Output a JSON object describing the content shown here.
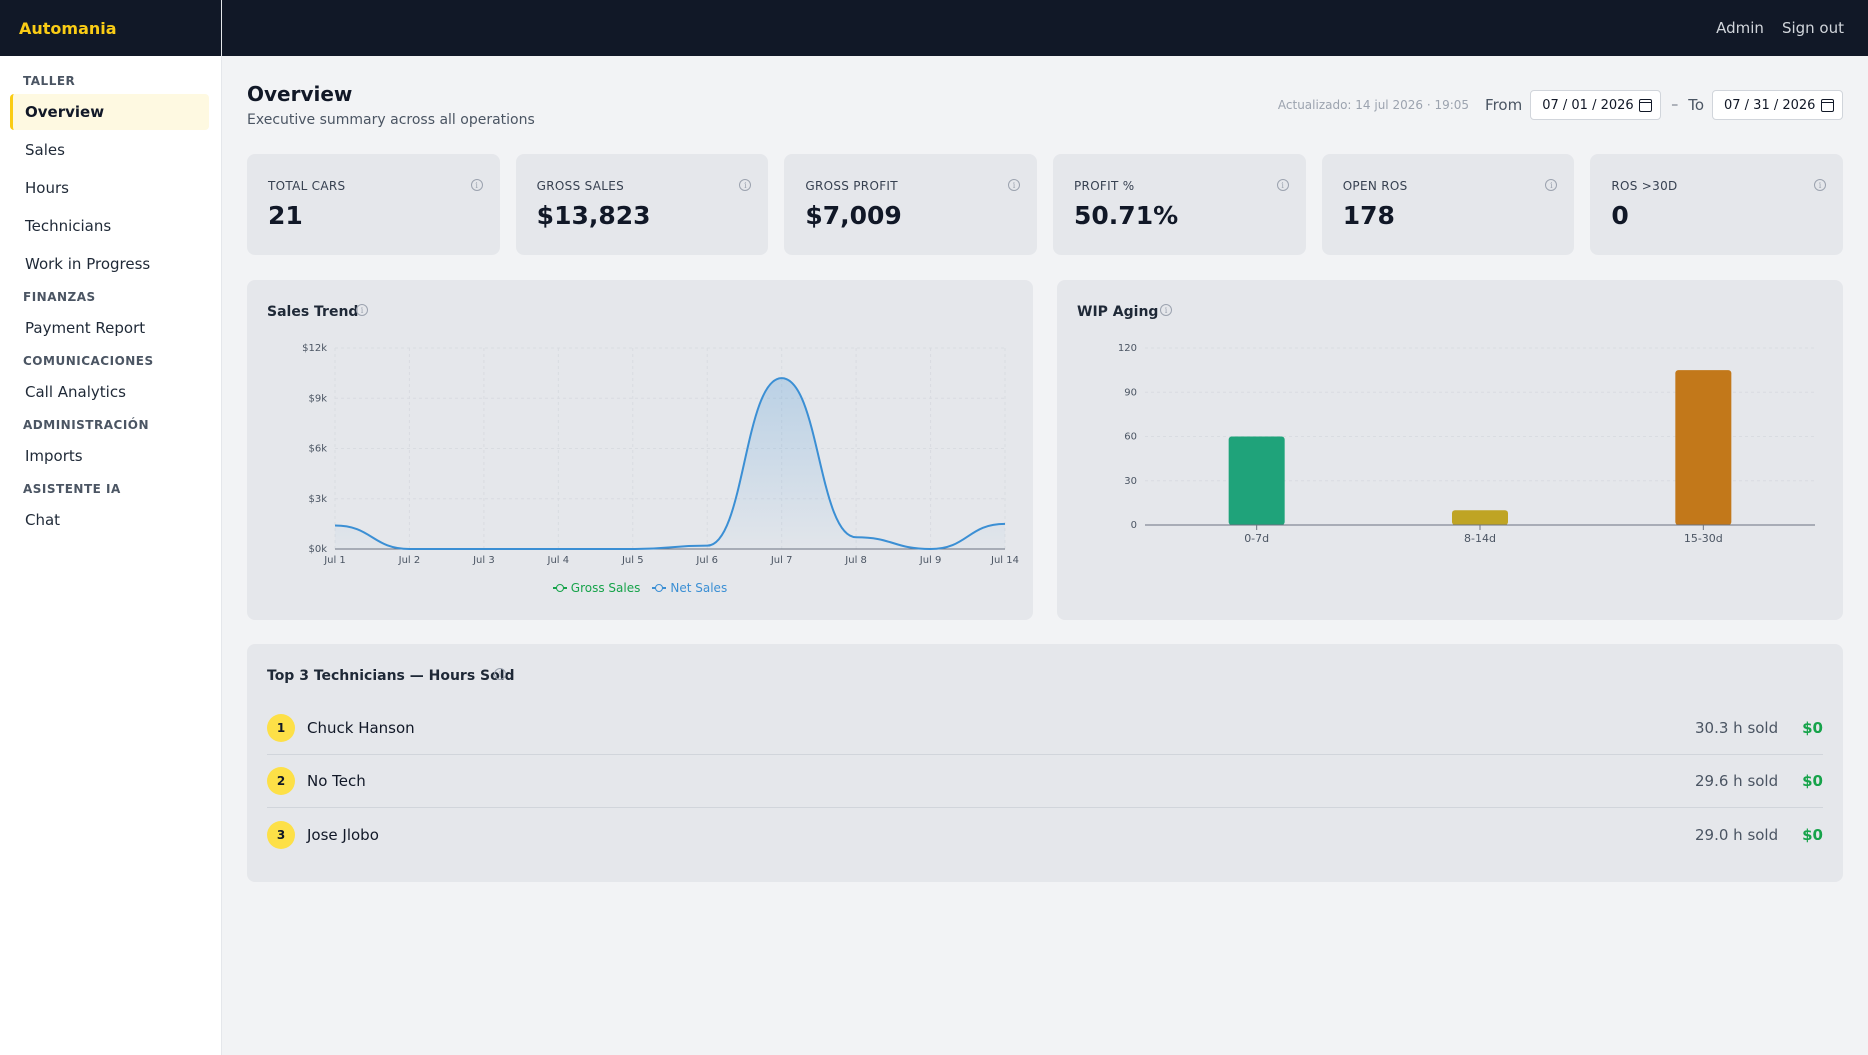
{
  "app": {
    "brand": "Automania"
  },
  "topbar": {
    "user": "Admin",
    "signout": "Sign out"
  },
  "sidebar": {
    "groups": [
      {
        "title": "TALLER",
        "items": [
          "Overview",
          "Sales",
          "Hours",
          "Technicians",
          "Work in Progress"
        ]
      },
      {
        "title": "FINANZAS",
        "items": [
          "Payment Report"
        ]
      },
      {
        "title": "COMUNICACIONES",
        "items": [
          "Call Analytics"
        ]
      },
      {
        "title": "ADMINISTRACIÓN",
        "items": [
          "Imports"
        ]
      },
      {
        "title": "ASISTENTE IA",
        "items": [
          "Chat"
        ]
      }
    ],
    "active": "Overview"
  },
  "page": {
    "title": "Overview",
    "subtitle": "Executive summary across all operations",
    "updated": "Actualizado: 14 jul 2026 · 19:05",
    "from_label": "From",
    "from_value": "07 / 01 / 2026",
    "separator": "–",
    "to_label": "To",
    "to_value": "07 / 31 / 2026"
  },
  "kpis": [
    {
      "label": "TOTAL CARS",
      "value": "21"
    },
    {
      "label": "GROSS SALES",
      "value": "$13,823"
    },
    {
      "label": "GROSS PROFIT",
      "value": "$7,009"
    },
    {
      "label": "PROFIT %",
      "value": "50.71%"
    },
    {
      "label": "OPEN ROS",
      "value": "178"
    },
    {
      "label": "ROS >30D",
      "value": "0"
    }
  ],
  "sales_trend": {
    "title": "Sales Trend"
  },
  "wip_aging": {
    "title": "WIP Aging"
  },
  "technicians": {
    "title": "Top 3 Technicians — Hours Sold",
    "rows": [
      {
        "rank": "1",
        "name": "Chuck Hanson",
        "hours": "30.3 h sold",
        "amount": "$0"
      },
      {
        "rank": "2",
        "name": "No Tech",
        "hours": "29.6 h sold",
        "amount": "$0"
      },
      {
        "rank": "3",
        "name": "Jose Jlobo",
        "hours": "29.0 h sold",
        "amount": "$0"
      }
    ]
  },
  "colors": {
    "gross_sales": "#16a34a",
    "net_sales": "#3b8fd4",
    "bar_0_7": "#1fa37a",
    "bar_8_14": "#bfa424",
    "bar_15_30": "#c2781a"
  },
  "chart_data": [
    {
      "type": "line",
      "title": "Sales Trend",
      "x": [
        "Jul 1",
        "Jul 2",
        "Jul 3",
        "Jul 4",
        "Jul 5",
        "Jul 6",
        "Jul 7",
        "Jul 8",
        "Jul 9",
        "Jul 14"
      ],
      "y_ticks": [
        "$0k",
        "$3k",
        "$6k",
        "$9k",
        "$12k"
      ],
      "ylim": [
        0,
        12000
      ],
      "series": [
        {
          "name": "Gross Sales",
          "values": [
            1400,
            0,
            0,
            0,
            0,
            200,
            10200,
            700,
            0,
            1500
          ]
        },
        {
          "name": "Net Sales",
          "values": [
            1400,
            0,
            0,
            0,
            0,
            200,
            10200,
            700,
            0,
            1500
          ]
        }
      ],
      "legend": [
        "Gross Sales",
        "Net Sales"
      ],
      "legend_position": "bottom",
      "grid": true
    },
    {
      "type": "bar",
      "title": "WIP Aging",
      "categories": [
        "0-7d",
        "8-14d",
        "15-30d"
      ],
      "values": [
        60,
        10,
        105
      ],
      "y_ticks": [
        "0",
        "30",
        "60",
        "90",
        "120"
      ],
      "ylim": [
        0,
        120
      ],
      "grid": true
    }
  ]
}
